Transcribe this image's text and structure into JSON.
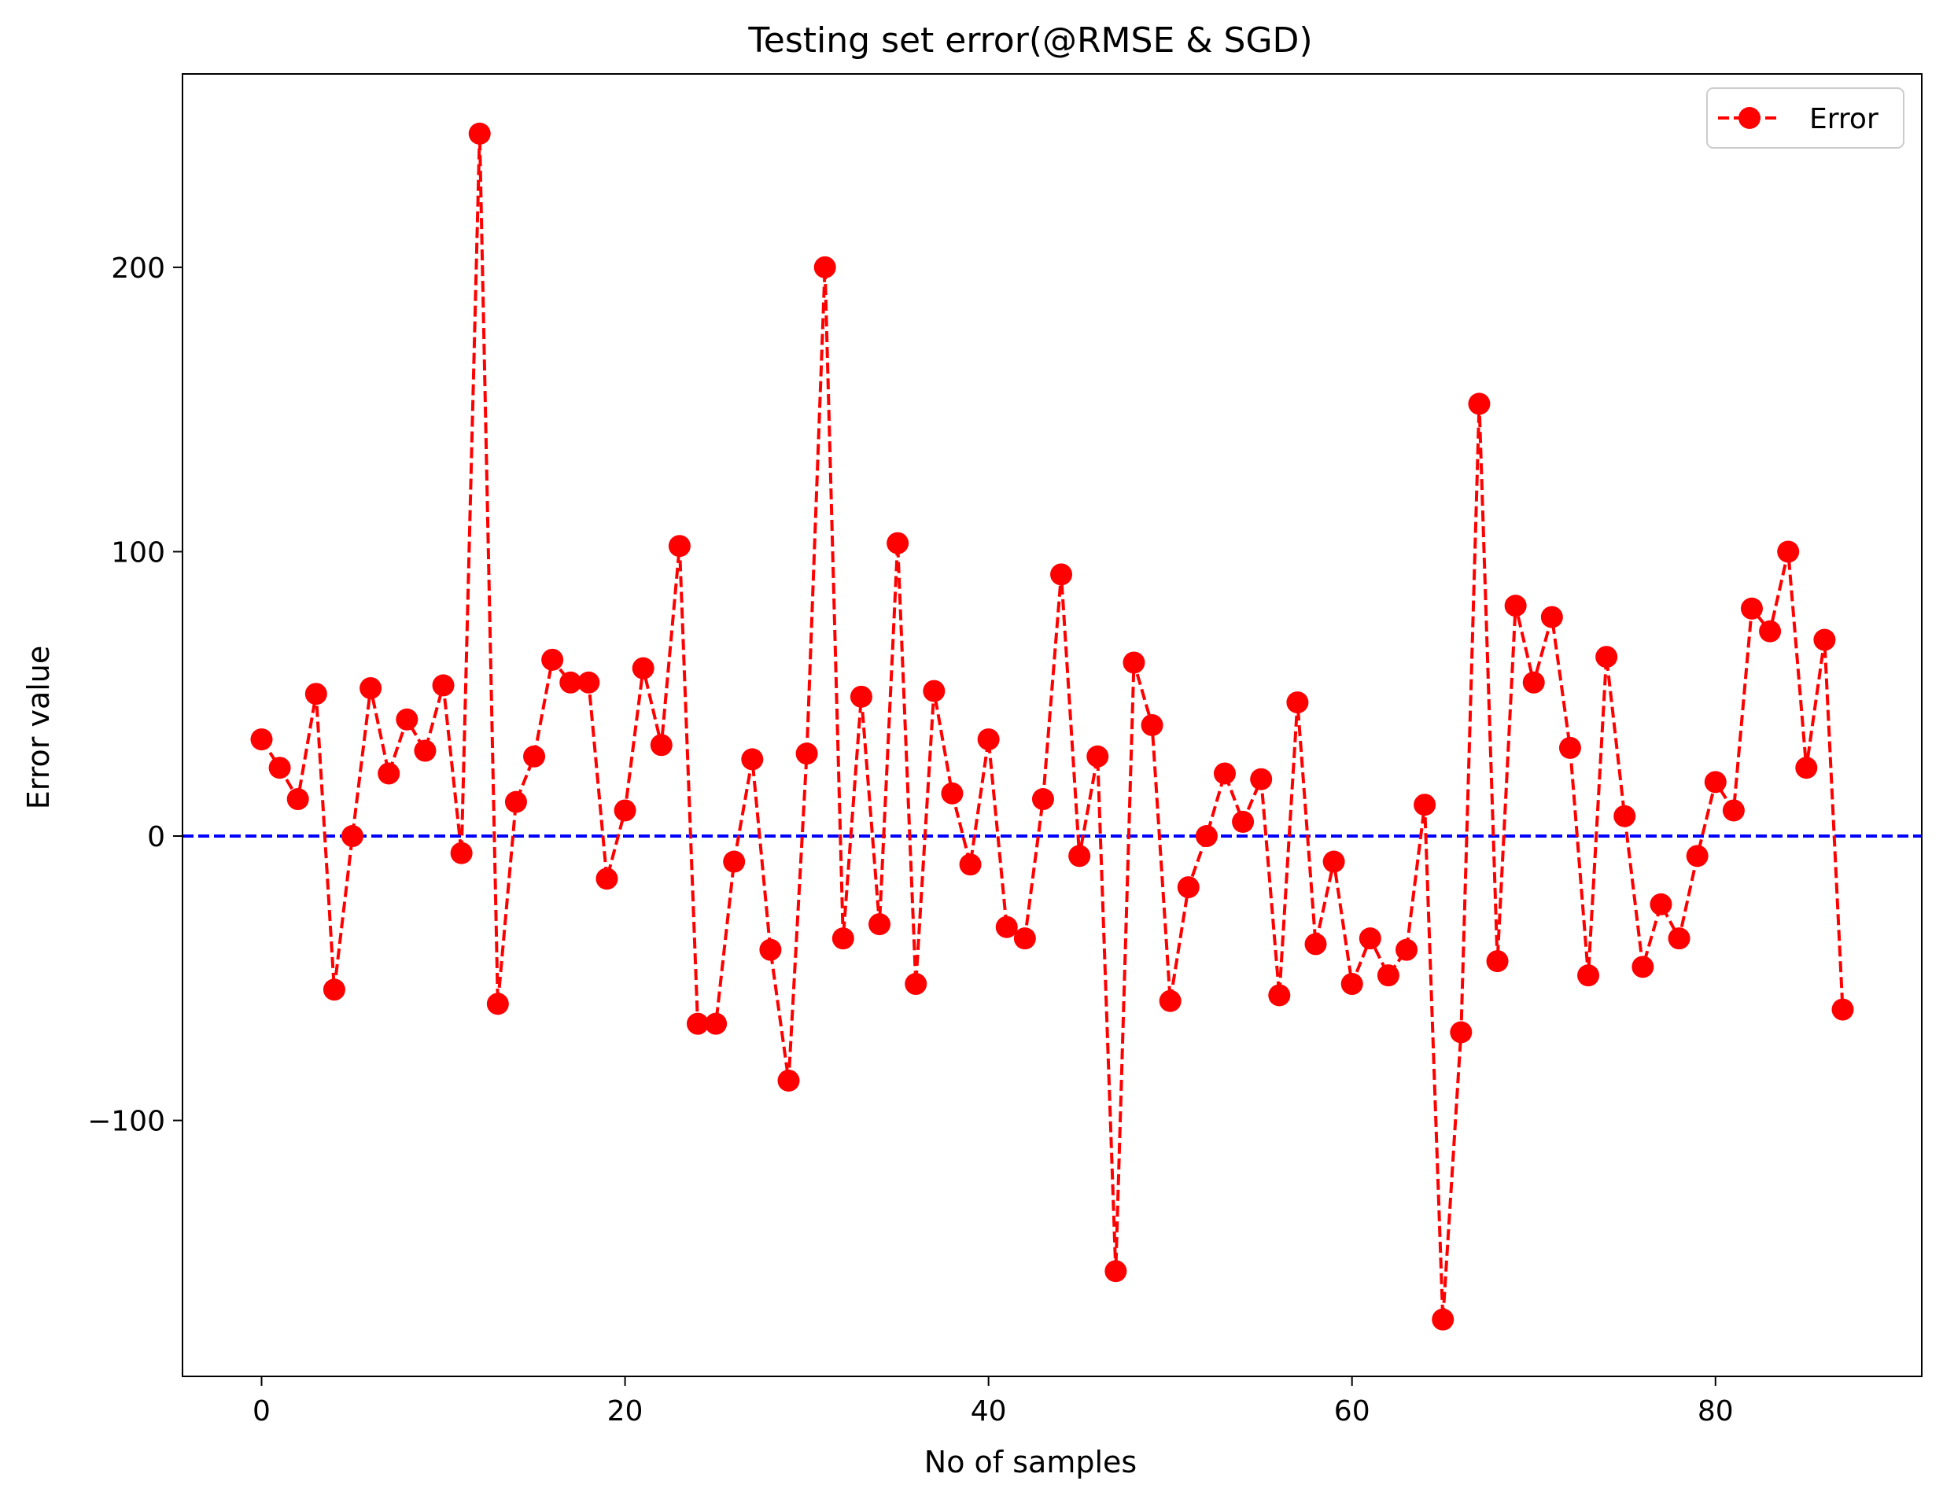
{
  "chart_data": {
    "type": "line",
    "title": "Testing set error(@RMSE & SGD)",
    "xlabel": "No of samples",
    "ylabel": "Error value",
    "xlim": [
      -4.35,
      91.35
    ],
    "ylim": [
      -190,
      268
    ],
    "xticks": [
      0,
      20,
      40,
      60,
      80
    ],
    "yticks": [
      -100,
      0,
      100,
      200
    ],
    "ytick_labels": [
      "−100",
      "0",
      "100",
      "200"
    ],
    "grid": false,
    "legend_position": "top-right",
    "reference_line": {
      "y": 0,
      "color": "#0000ff",
      "style": "dashed"
    },
    "series": [
      {
        "name": "Error",
        "color": "#ff0000",
        "line_style": "dashed",
        "marker": "circle",
        "x": [
          0,
          1,
          2,
          3,
          4,
          5,
          6,
          7,
          8,
          9,
          10,
          11,
          12,
          13,
          14,
          15,
          16,
          17,
          18,
          19,
          20,
          21,
          22,
          23,
          24,
          25,
          26,
          27,
          28,
          29,
          30,
          31,
          32,
          33,
          34,
          35,
          36,
          37,
          38,
          39,
          40,
          41,
          42,
          43,
          44,
          45,
          46,
          47,
          48,
          49,
          50,
          51,
          52,
          53,
          54,
          55,
          56,
          57,
          58,
          59,
          60,
          61,
          62,
          63,
          64,
          65,
          66,
          67,
          68,
          69,
          70,
          71,
          72,
          73,
          74,
          75,
          76,
          77,
          78,
          79,
          80,
          81,
          82,
          83,
          84,
          85,
          86,
          87
        ],
        "values": [
          34,
          24,
          13,
          50,
          -54,
          0,
          52,
          22,
          41,
          30,
          53,
          -6,
          247,
          -59,
          12,
          28,
          62,
          54,
          54,
          -15,
          9,
          59,
          32,
          102,
          -66,
          -66,
          -9,
          27,
          -40,
          -86,
          29,
          200,
          -36,
          49,
          -31,
          103,
          -52,
          51,
          15,
          -10,
          34,
          -32,
          -36,
          13,
          92,
          -7,
          28,
          -153,
          61,
          39,
          -58,
          -18,
          0,
          22,
          5,
          20,
          -56,
          47,
          -38,
          -9,
          -52,
          -36,
          -49,
          -40,
          11,
          -170,
          -69,
          152,
          -44,
          81,
          54,
          77,
          31,
          -49,
          63,
          7,
          -46,
          -24,
          -36,
          -7,
          19,
          9,
          80,
          72,
          100,
          24,
          69,
          -61
        ]
      }
    ]
  }
}
